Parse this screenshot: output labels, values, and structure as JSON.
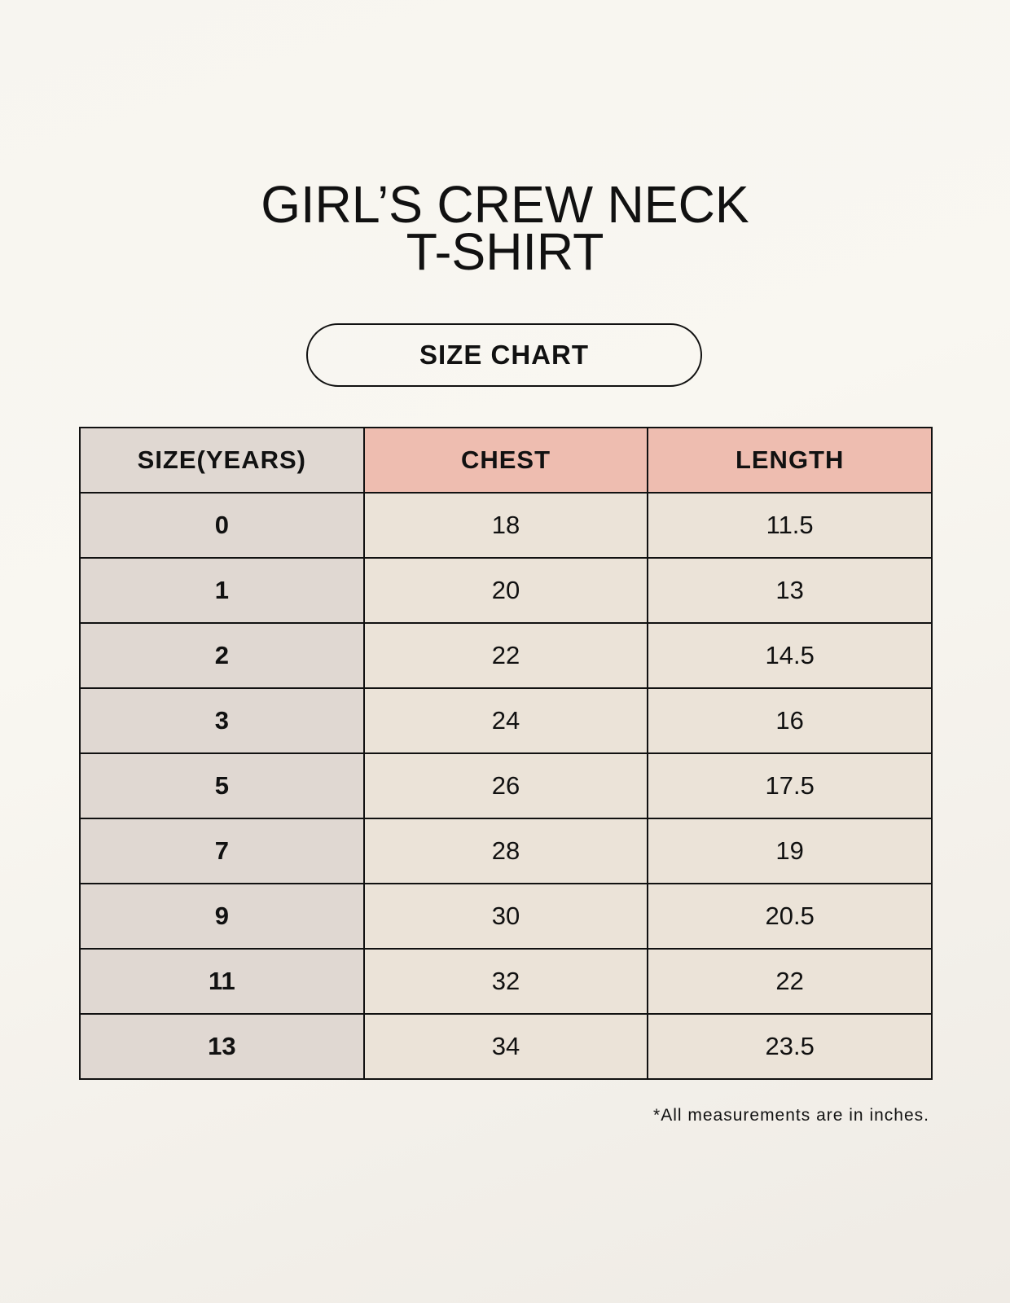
{
  "title": {
    "line1": "GIRL’S CREW NECK",
    "line2": "T-SHIRT"
  },
  "subtitle": "SIZE CHART",
  "table": {
    "headers": [
      "SIZE(YEARS)",
      "CHEST",
      "LENGTH"
    ],
    "rows": [
      [
        "0",
        "18",
        "11.5"
      ],
      [
        "1",
        "20",
        "13"
      ],
      [
        "2",
        "22",
        "14.5"
      ],
      [
        "3",
        "24",
        "16"
      ],
      [
        "5",
        "26",
        "17.5"
      ],
      [
        "7",
        "28",
        "19"
      ],
      [
        "9",
        "30",
        "20.5"
      ],
      [
        "11",
        "32",
        "22"
      ],
      [
        "13",
        "34",
        "23.5"
      ]
    ]
  },
  "footnote": "*All measurements are in inches.",
  "colors": {
    "header_size_bg": "#e0d8d2",
    "header_measure_bg": "#eebdb0",
    "cell_bg": "#ebe3d8"
  }
}
